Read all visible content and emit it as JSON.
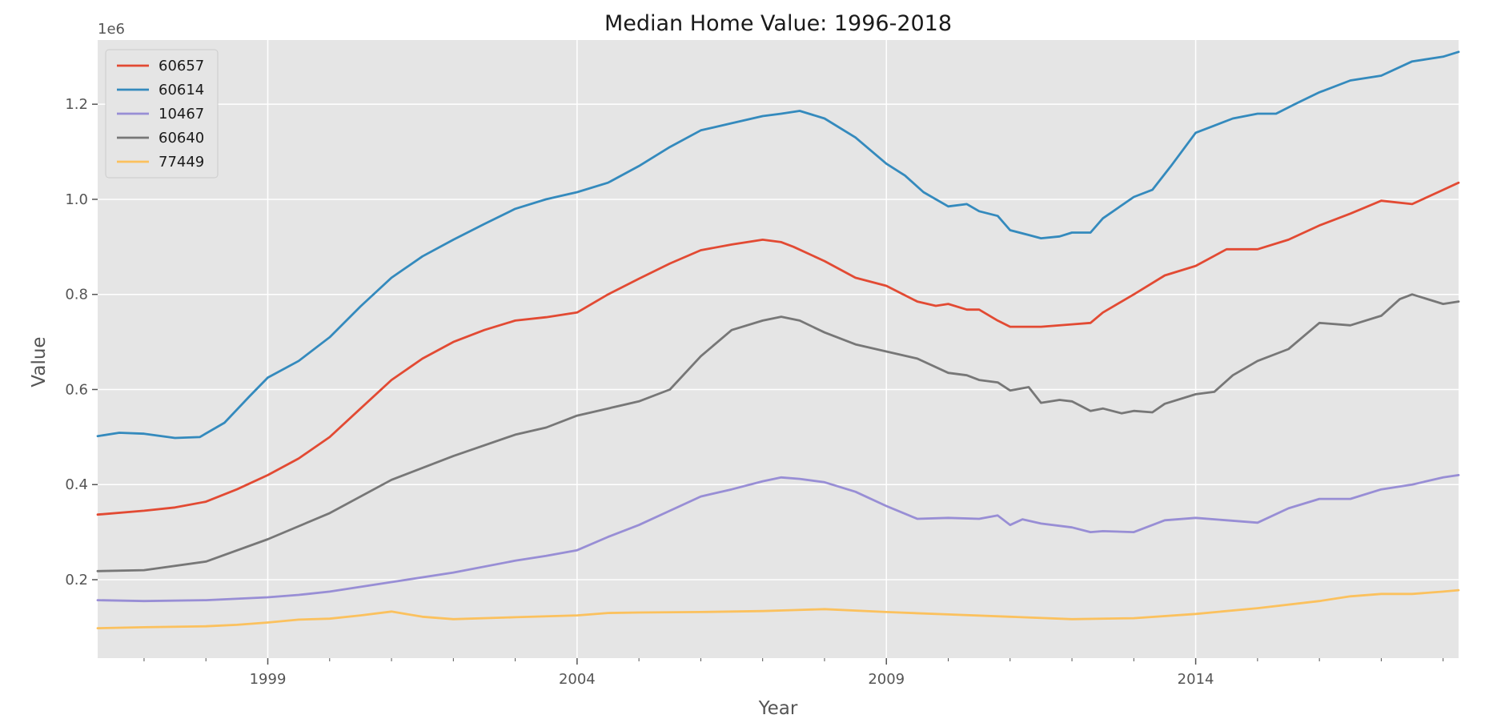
{
  "chart_data": {
    "type": "line",
    "title": "Median Home Value: 1996-2018",
    "xlabel": "Year",
    "ylabel": "Value",
    "y_scale_label": "1e6",
    "xlim": [
      1996.25,
      2018.25
    ],
    "ylim": [
      0.035,
      1.335
    ],
    "x_ticks": [
      1999,
      2004,
      2009,
      2014
    ],
    "x_tick_labels": [
      "1999",
      "2004",
      "2009",
      "2014"
    ],
    "y_ticks": [
      0.2,
      0.4,
      0.6,
      0.8,
      1.0,
      1.2
    ],
    "y_tick_labels": [
      "0.2",
      "0.4",
      "0.6",
      "0.8",
      "1.0",
      "1.2"
    ],
    "grid": true,
    "background": "#e5e5e5",
    "legend_position": "top-left",
    "series": [
      {
        "name": "60657",
        "color": "#e24a33",
        "x": [
          1996.25,
          1997.0,
          1997.5,
          1998.0,
          1998.5,
          1999.0,
          1999.5,
          2000.0,
          2000.5,
          2001.0,
          2001.5,
          2002.0,
          2002.5,
          2003.0,
          2003.5,
          2004.0,
          2004.5,
          2005.0,
          2005.5,
          2006.0,
          2006.5,
          2007.0,
          2007.3,
          2007.5,
          2008.0,
          2008.5,
          2009.0,
          2009.5,
          2009.8,
          2010.0,
          2010.3,
          2010.5,
          2010.8,
          2011.0,
          2011.5,
          2012.0,
          2012.3,
          2012.5,
          2013.0,
          2013.5,
          2014.0,
          2014.5,
          2015.0,
          2015.5,
          2016.0,
          2016.5,
          2017.0,
          2017.5,
          2018.0,
          2018.25
        ],
        "y": [
          0.337,
          0.345,
          0.352,
          0.364,
          0.39,
          0.42,
          0.455,
          0.5,
          0.56,
          0.62,
          0.665,
          0.7,
          0.725,
          0.745,
          0.752,
          0.762,
          0.8,
          0.833,
          0.865,
          0.893,
          0.905,
          0.915,
          0.91,
          0.9,
          0.87,
          0.835,
          0.818,
          0.785,
          0.776,
          0.78,
          0.768,
          0.768,
          0.745,
          0.732,
          0.732,
          0.737,
          0.74,
          0.762,
          0.8,
          0.84,
          0.86,
          0.895,
          0.895,
          0.915,
          0.945,
          0.97,
          0.997,
          0.99,
          1.02,
          1.035
        ]
      },
      {
        "name": "60614",
        "color": "#348abd",
        "x": [
          1996.25,
          1996.6,
          1997.0,
          1997.5,
          1997.9,
          1998.3,
          1998.7,
          1999.0,
          1999.5,
          2000.0,
          2000.5,
          2001.0,
          2001.5,
          2002.0,
          2002.5,
          2003.0,
          2003.5,
          2004.0,
          2004.5,
          2005.0,
          2005.5,
          2006.0,
          2006.5,
          2007.0,
          2007.3,
          2007.6,
          2008.0,
          2008.5,
          2009.0,
          2009.3,
          2009.6,
          2010.0,
          2010.3,
          2010.5,
          2010.8,
          2011.0,
          2011.3,
          2011.5,
          2011.8,
          2012.0,
          2012.3,
          2012.5,
          2013.0,
          2013.3,
          2013.6,
          2014.0,
          2014.3,
          2014.6,
          2015.0,
          2015.3,
          2015.6,
          2016.0,
          2016.5,
          2017.0,
          2017.5,
          2018.0,
          2018.25
        ],
        "y": [
          0.502,
          0.509,
          0.507,
          0.498,
          0.5,
          0.53,
          0.585,
          0.625,
          0.66,
          0.71,
          0.775,
          0.835,
          0.88,
          0.915,
          0.948,
          0.98,
          1.0,
          1.015,
          1.035,
          1.07,
          1.11,
          1.145,
          1.16,
          1.175,
          1.18,
          1.186,
          1.17,
          1.13,
          1.075,
          1.05,
          1.015,
          0.985,
          0.99,
          0.975,
          0.965,
          0.935,
          0.925,
          0.918,
          0.922,
          0.93,
          0.93,
          0.96,
          1.005,
          1.02,
          1.07,
          1.14,
          1.155,
          1.17,
          1.18,
          1.18,
          1.2,
          1.225,
          1.25,
          1.26,
          1.29,
          1.3,
          1.31
        ]
      },
      {
        "name": "10467",
        "color": "#988ed5",
        "x": [
          1996.25,
          1997.0,
          1998.0,
          1999.0,
          1999.5,
          2000.0,
          2001.0,
          2002.0,
          2003.0,
          2003.5,
          2004.0,
          2004.5,
          2005.0,
          2005.5,
          2006.0,
          2006.5,
          2007.0,
          2007.3,
          2007.6,
          2008.0,
          2008.5,
          2009.0,
          2009.5,
          2010.0,
          2010.5,
          2010.8,
          2011.0,
          2011.2,
          2011.5,
          2012.0,
          2012.3,
          2012.5,
          2013.0,
          2013.5,
          2014.0,
          2014.5,
          2015.0,
          2015.5,
          2016.0,
          2016.5,
          2017.0,
          2017.5,
          2018.0,
          2018.25
        ],
        "y": [
          0.157,
          0.155,
          0.157,
          0.163,
          0.168,
          0.175,
          0.195,
          0.215,
          0.24,
          0.25,
          0.262,
          0.29,
          0.315,
          0.345,
          0.375,
          0.39,
          0.407,
          0.415,
          0.412,
          0.405,
          0.385,
          0.355,
          0.328,
          0.33,
          0.328,
          0.335,
          0.315,
          0.327,
          0.318,
          0.31,
          0.3,
          0.302,
          0.3,
          0.325,
          0.33,
          0.325,
          0.32,
          0.35,
          0.37,
          0.37,
          0.39,
          0.4,
          0.415,
          0.42
        ]
      },
      {
        "name": "60640",
        "color": "#777777",
        "x": [
          1996.25,
          1997.0,
          1998.0,
          1999.0,
          2000.0,
          2001.0,
          2002.0,
          2003.0,
          2003.5,
          2004.0,
          2004.5,
          2005.0,
          2005.5,
          2006.0,
          2006.5,
          2007.0,
          2007.3,
          2007.6,
          2008.0,
          2008.5,
          2009.0,
          2009.5,
          2010.0,
          2010.3,
          2010.5,
          2010.8,
          2011.0,
          2011.3,
          2011.5,
          2011.8,
          2012.0,
          2012.3,
          2012.5,
          2012.8,
          2013.0,
          2013.3,
          2013.5,
          2014.0,
          2014.3,
          2014.6,
          2015.0,
          2015.5,
          2016.0,
          2016.5,
          2017.0,
          2017.3,
          2017.5,
          2018.0,
          2018.25
        ],
        "y": [
          0.218,
          0.22,
          0.238,
          0.285,
          0.34,
          0.41,
          0.46,
          0.505,
          0.52,
          0.545,
          0.56,
          0.575,
          0.6,
          0.67,
          0.725,
          0.745,
          0.753,
          0.745,
          0.72,
          0.695,
          0.68,
          0.665,
          0.635,
          0.63,
          0.62,
          0.615,
          0.598,
          0.605,
          0.572,
          0.578,
          0.575,
          0.555,
          0.56,
          0.55,
          0.555,
          0.552,
          0.57,
          0.59,
          0.595,
          0.63,
          0.66,
          0.685,
          0.74,
          0.735,
          0.755,
          0.79,
          0.8,
          0.78,
          0.785
        ]
      },
      {
        "name": "77449",
        "color": "#fbc15e",
        "x": [
          1996.25,
          1997.0,
          1998.0,
          1998.5,
          1999.0,
          1999.5,
          2000.0,
          2000.5,
          2001.0,
          2001.5,
          2002.0,
          2003.0,
          2004.0,
          2004.5,
          2005.0,
          2006.0,
          2007.0,
          2007.5,
          2008.0,
          2009.0,
          2010.0,
          2011.0,
          2012.0,
          2013.0,
          2014.0,
          2015.0,
          2016.0,
          2016.5,
          2017.0,
          2017.5,
          2018.0,
          2018.25
        ],
        "y": [
          0.098,
          0.1,
          0.102,
          0.105,
          0.11,
          0.116,
          0.118,
          0.125,
          0.133,
          0.122,
          0.117,
          0.121,
          0.125,
          0.13,
          0.131,
          0.132,
          0.134,
          0.136,
          0.138,
          0.132,
          0.127,
          0.122,
          0.117,
          0.119,
          0.128,
          0.14,
          0.155,
          0.165,
          0.17,
          0.17,
          0.175,
          0.178
        ]
      }
    ]
  }
}
